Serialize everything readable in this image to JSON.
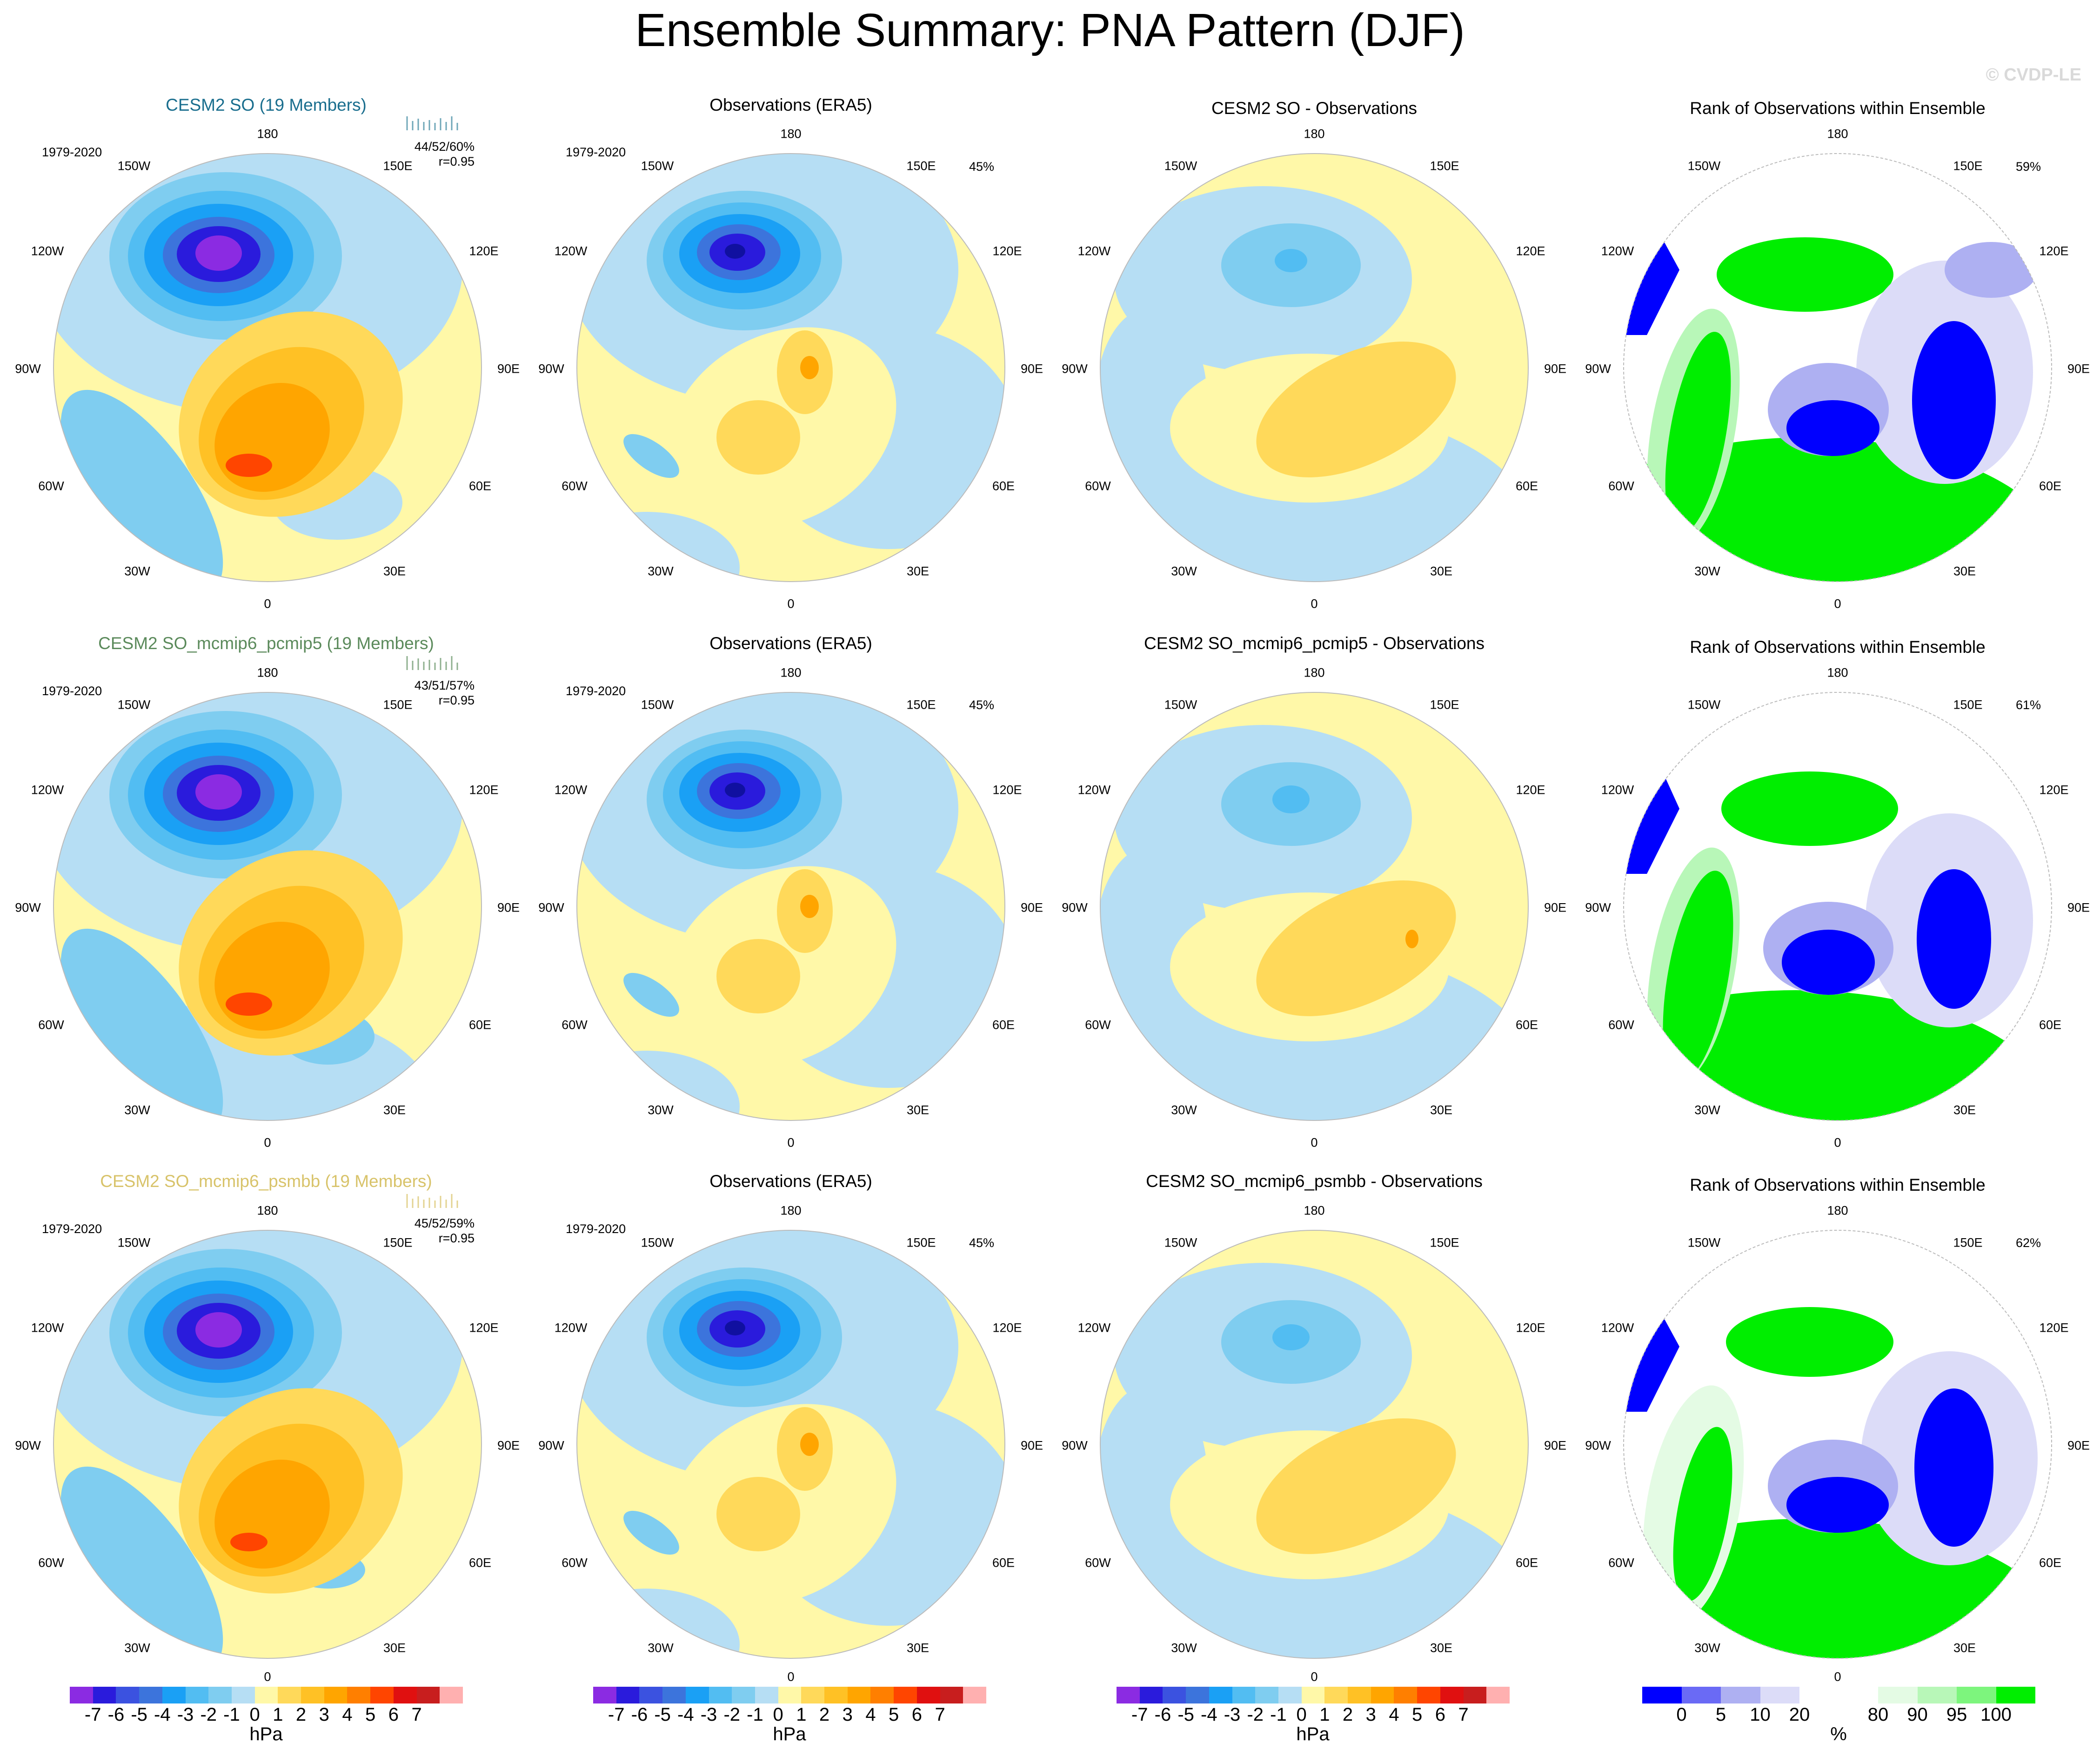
{
  "title": "Ensemble Summary: PNA Pattern (DJF)",
  "watermark": "© CVDP-LE",
  "period": "1979-2020",
  "lon_labels": {
    "n": "180",
    "s": "0",
    "w90": "90W",
    "e90": "90E",
    "w150": "150W",
    "e150": "150E",
    "w120": "120W",
    "e120": "120E",
    "w60": "60W",
    "e60": "60E",
    "w30": "30W",
    "e30": "30E"
  },
  "rows": [
    {
      "ensemble_title": "CESM2 SO (19 Members)",
      "ensemble_color": "#1a6e8e",
      "stats": "44/52/60%",
      "corr": "r=0.95",
      "obs_title": "Observations (ERA5)",
      "obs_pct": "45%",
      "diff_title": "CESM2 SO - Observations",
      "rank_title": "Rank of Observations within Ensemble",
      "rank_pct": "59%"
    },
    {
      "ensemble_title": "CESM2 SO_mcmip6_pcmip5 (19 Members)",
      "ensemble_color": "#5b8a5b",
      "stats": "43/51/57%",
      "corr": "r=0.95",
      "obs_title": "Observations (ERA5)",
      "obs_pct": "45%",
      "diff_title": "CESM2 SO_mcmip6_pcmip5 - Observations",
      "rank_title": "Rank of Observations within Ensemble",
      "rank_pct": "61%"
    },
    {
      "ensemble_title": "CESM2 SO_mcmip6_psmbb (19 Members)",
      "ensemble_color": "#d8c36a",
      "stats": "45/52/59%",
      "corr": "r=0.95",
      "obs_title": "Observations (ERA5)",
      "obs_pct": "45%",
      "diff_title": "CESM2 SO_mcmip6_psmbb - Observations",
      "rank_title": "Rank of Observations within Ensemble",
      "rank_pct": "62%"
    }
  ],
  "colorbar_hpa": {
    "colors": [
      "#8b2be2",
      "#2a1bdc",
      "#3b52e0",
      "#3c74dc",
      "#1aa0f5",
      "#52bdf2",
      "#7fcdf0",
      "#b6def4",
      "#fff8a8",
      "#ffd95a",
      "#ffc125",
      "#ffa500",
      "#ff7f00",
      "#ff4500",
      "#e01010",
      "#c81e1e",
      "#ffb0b0"
    ],
    "ticks": [
      "-7",
      "-6",
      "-5",
      "-4",
      "-3",
      "-2",
      "-1",
      "0",
      "1",
      "2",
      "3",
      "4",
      "5",
      "6",
      "7"
    ],
    "unit": "hPa"
  },
  "colorbar_rank": {
    "colors": [
      "#0000ff",
      "#6a6af5",
      "#aeb0f2",
      "#dcdcf8",
      "#ffffff",
      "#ffffff",
      "#e4fbe4",
      "#b8f7b8",
      "#7df57d",
      "#00ee00"
    ],
    "ticks": [
      "0",
      "5",
      "10",
      "20",
      "80",
      "90",
      "95",
      "100"
    ],
    "unit": "%"
  }
}
